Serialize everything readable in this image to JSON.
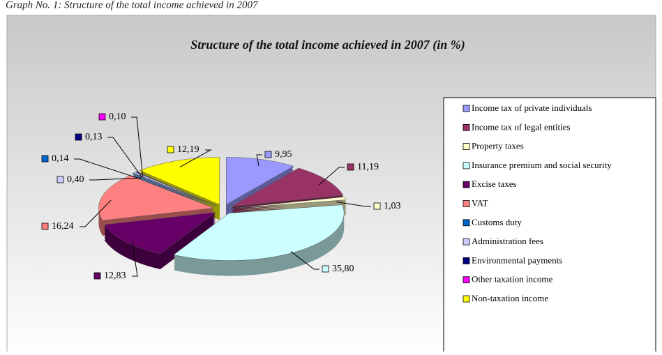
{
  "chart_data": {
    "type": "pie",
    "caption": "Graph No. 1: Structure of the total income achieved in 2007",
    "title": "Structure of the total income achieved in 2007  (in %)",
    "categories": [
      "Income tax of private individuals",
      "Income tax of legal entities",
      "Property taxes",
      "Insurance premium and social security",
      "Excise taxes",
      "VAT",
      "Customs duty",
      "Administration fees",
      "Environmental payments",
      "Other taxation income",
      "Non-taxation income"
    ],
    "values": [
      9.95,
      11.19,
      1.03,
      35.8,
      12.83,
      16.24,
      0.14,
      0.4,
      0.13,
      0.1,
      12.19
    ],
    "value_labels": [
      "9,95",
      "11,19",
      "1,03",
      "35,80",
      "12,83",
      "16,24",
      "0,14",
      "0,40",
      "0,13",
      "0,10",
      "12,19"
    ],
    "colors": [
      "#9999ff",
      "#993366",
      "#ffffcc",
      "#ccffff",
      "#660066",
      "#ff8080",
      "#0066cc",
      "#ccccff",
      "#000080",
      "#ff00ff",
      "#ffff00"
    ],
    "legend": "right"
  }
}
